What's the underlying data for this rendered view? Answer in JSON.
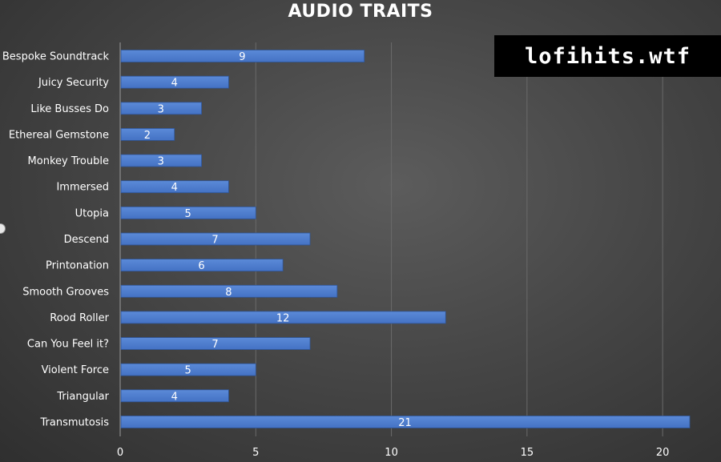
{
  "watermark": "lofihits.wtf",
  "chart_data": {
    "type": "bar",
    "orientation": "horizontal",
    "title": "AUDIO TRAITS",
    "categories": [
      "Bespoke Soundtrack",
      "Juicy Security",
      "Like Busses Do",
      "Ethereal Gemstone",
      "Monkey Trouble",
      "Immersed",
      "Utopia",
      "Descend",
      "Printonation",
      "Smooth Grooves",
      "Rood Roller",
      "Can You Feel it?",
      "Violent Force",
      "Triangular",
      "Transmutosis"
    ],
    "values": [
      9,
      4,
      3,
      2,
      3,
      4,
      5,
      7,
      6,
      8,
      12,
      7,
      5,
      4,
      21
    ],
    "xlim": [
      0,
      21
    ],
    "xticks": [
      0,
      5,
      10,
      15,
      20
    ],
    "grid": true,
    "data_labels": true,
    "colors": {
      "bar": "#4472c4",
      "bar_light": "#5b8ad8",
      "grid": "#6a6a6a",
      "text": "#ffffff"
    }
  }
}
